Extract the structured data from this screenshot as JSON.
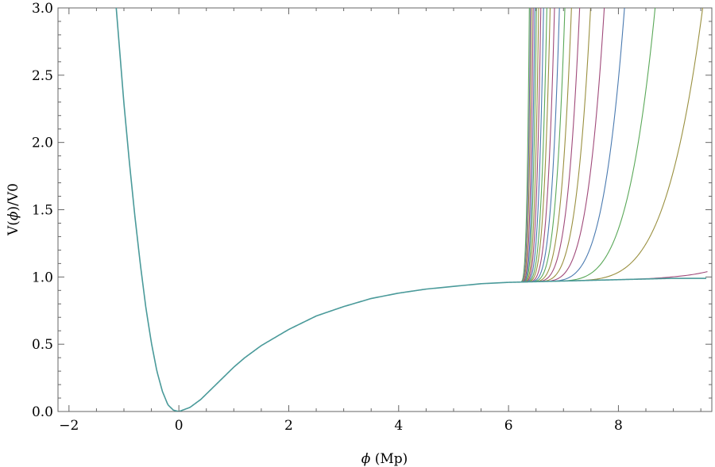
{
  "chart_data": {
    "type": "line",
    "xlabel_symbol": "ϕ",
    "xlabel_rest": " (Mp)",
    "ylabel_pre": "V(",
    "ylabel_symbol": "ϕ",
    "ylabel_post": ")/V0",
    "xlim": [
      -2.2,
      9.7
    ],
    "ylim": [
      0.0,
      3.0
    ],
    "x_ticks": [
      {
        "value": -2,
        "label": "−2"
      },
      {
        "value": 0,
        "label": "0"
      },
      {
        "value": 2,
        "label": "2"
      },
      {
        "value": 4,
        "label": "4"
      },
      {
        "value": 6,
        "label": "6"
      },
      {
        "value": 8,
        "label": "8"
      }
    ],
    "y_ticks": [
      {
        "value": 0.0,
        "label": "0.0"
      },
      {
        "value": 0.5,
        "label": "0.5"
      },
      {
        "value": 1.0,
        "label": "1.0"
      },
      {
        "value": 1.5,
        "label": "1.5"
      },
      {
        "value": 2.0,
        "label": "2.0"
      },
      {
        "value": 2.5,
        "label": "2.5"
      },
      {
        "value": 3.0,
        "label": "3.0"
      }
    ],
    "grid": false,
    "base_curve": {
      "color": "#4a9a9a",
      "x": [
        -1.14,
        -1.0,
        -0.9,
        -0.8,
        -0.7,
        -0.6,
        -0.5,
        -0.4,
        -0.3,
        -0.2,
        -0.1,
        0.0,
        0.2,
        0.4,
        0.6,
        0.8,
        1.0,
        1.2,
        1.5,
        2.0,
        2.5,
        3.0,
        3.5,
        4.0,
        4.5,
        5.0,
        5.5,
        6.0,
        6.2,
        7.0,
        8.0,
        9.0,
        9.6
      ],
      "y": [
        3.0,
        2.29,
        1.85,
        1.45,
        1.09,
        0.77,
        0.51,
        0.3,
        0.15,
        0.05,
        0.01,
        0.0,
        0.03,
        0.09,
        0.17,
        0.25,
        0.33,
        0.4,
        0.49,
        0.61,
        0.71,
        0.78,
        0.84,
        0.88,
        0.91,
        0.93,
        0.95,
        0.96,
        0.962,
        0.97,
        0.98,
        0.99,
        0.99
      ]
    },
    "branch_curves": [
      {
        "x_start": 6.2,
        "x_end": 6.38,
        "color": "#5aa858"
      },
      {
        "x_start": 6.21,
        "x_end": 6.4,
        "color": "#7a6fb0"
      },
      {
        "x_start": 6.22,
        "x_end": 6.42,
        "color": "#9a9040"
      },
      {
        "x_start": 6.23,
        "x_end": 6.45,
        "color": "#a04a7a"
      },
      {
        "x_start": 6.24,
        "x_end": 6.48,
        "color": "#4a7ab0"
      },
      {
        "x_start": 6.25,
        "x_end": 6.51,
        "color": "#5aa858"
      },
      {
        "x_start": 6.26,
        "x_end": 6.55,
        "color": "#9a9040"
      },
      {
        "x_start": 6.27,
        "x_end": 6.59,
        "color": "#a04a7a"
      },
      {
        "x_start": 6.28,
        "x_end": 6.64,
        "color": "#4a7ab0"
      },
      {
        "x_start": 6.29,
        "x_end": 6.7,
        "color": "#5aa858"
      },
      {
        "x_start": 6.3,
        "x_end": 6.76,
        "color": "#9a9040"
      },
      {
        "x_start": 6.32,
        "x_end": 6.84,
        "color": "#a04a7a"
      },
      {
        "x_start": 6.34,
        "x_end": 6.93,
        "color": "#4a7ab0"
      },
      {
        "x_start": 6.36,
        "x_end": 7.03,
        "color": "#5aa858"
      },
      {
        "x_start": 6.39,
        "x_end": 7.15,
        "color": "#9a9040"
      },
      {
        "x_start": 6.42,
        "x_end": 7.3,
        "color": "#a04a7a"
      },
      {
        "x_start": 6.46,
        "x_end": 7.5,
        "color": "#9a9040"
      },
      {
        "x_start": 6.52,
        "x_end": 7.75,
        "color": "#a04a7a"
      },
      {
        "x_start": 6.6,
        "x_end": 8.12,
        "color": "#4a7ab0"
      },
      {
        "x_start": 6.72,
        "x_end": 8.68,
        "color": "#5aa858"
      },
      {
        "x_start": 6.95,
        "x_end": 9.55,
        "color": "#9a9040"
      },
      {
        "x_start": 7.6,
        "x_end": 9.62,
        "y_end": 1.04,
        "color": "#a04a7a"
      }
    ]
  }
}
